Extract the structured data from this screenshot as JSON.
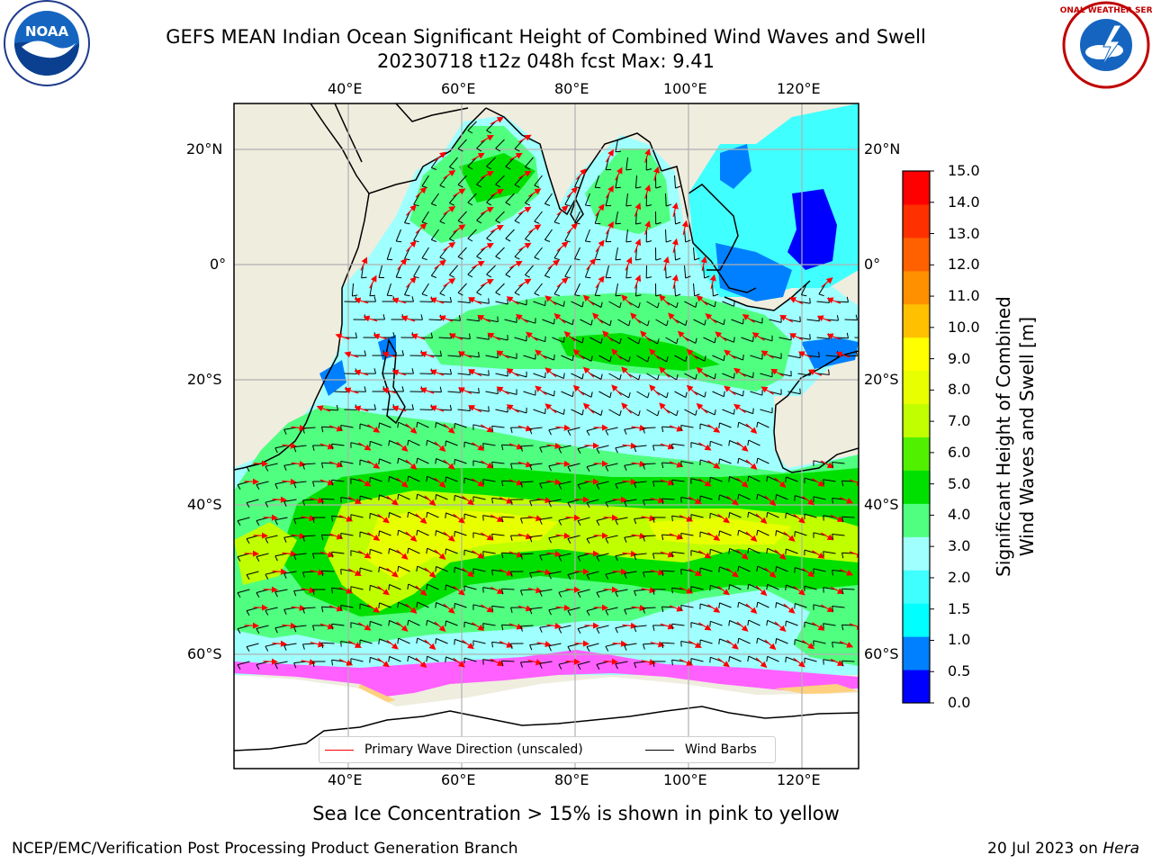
{
  "title_line1": "GEFS MEAN Indian Ocean Significant Height of Combined Wind Waves and Swell",
  "title_line2": "20230718 t12z 048h fcst   Max: 9.41",
  "logos": {
    "left": "NOAA",
    "right": "NATIONAL WEATHER SERVICE"
  },
  "map": {
    "lon_ticks_top": [
      "40°E",
      "60°E",
      "80°E",
      "100°E",
      "120°E"
    ],
    "lon_ticks_bottom": [
      "40°E",
      "60°E",
      "80°E",
      "100°E",
      "120°E"
    ],
    "lat_ticks_left": [
      "20°N",
      "0°",
      "20°S",
      "40°S",
      "60°S"
    ],
    "lat_ticks_right": [
      "20°N",
      "0°",
      "20°S",
      "40°S",
      "60°S"
    ],
    "grid": true,
    "land_color": "#efedde",
    "coast_color": "#000000"
  },
  "colorbar": {
    "label": "Significant Height of Combined Wind Waves and Swell [m]",
    "label_line1": "Significant Height of Combined",
    "label_line2": "Wind Waves and Swell [m]",
    "ticks": [
      "15.0",
      "14.0",
      "13.0",
      "12.0",
      "11.0",
      "10.0",
      "9.0",
      "8.0",
      "7.0",
      "6.0",
      "5.0",
      "4.0",
      "3.0",
      "2.0",
      "1.5",
      "1.0",
      "0.5",
      "0.0"
    ],
    "colors_bottom_to_top": [
      "#0000ff",
      "#0080ff",
      "#00ffff",
      "#40ffff",
      "#a0ffff",
      "#50ff80",
      "#00e000",
      "#50f000",
      "#c0ff00",
      "#e8ff00",
      "#ffff00",
      "#ffc000",
      "#ff9000",
      "#ff6000",
      "#ff3000",
      "#ff0000"
    ]
  },
  "legend": {
    "wave_direction": "Primary Wave Direction (unscaled)",
    "wind_barbs": "Wind Barbs",
    "wave_color": "#ff0000",
    "barb_color": "#000000"
  },
  "note": "Sea Ice Concentration > 15% is shown in pink to yellow",
  "footer_left": "NCEP/EMC/Verification Post Processing Product Generation Branch",
  "footer_right_date": "20 Jul 2023 on ",
  "footer_right_host": "Hera"
}
